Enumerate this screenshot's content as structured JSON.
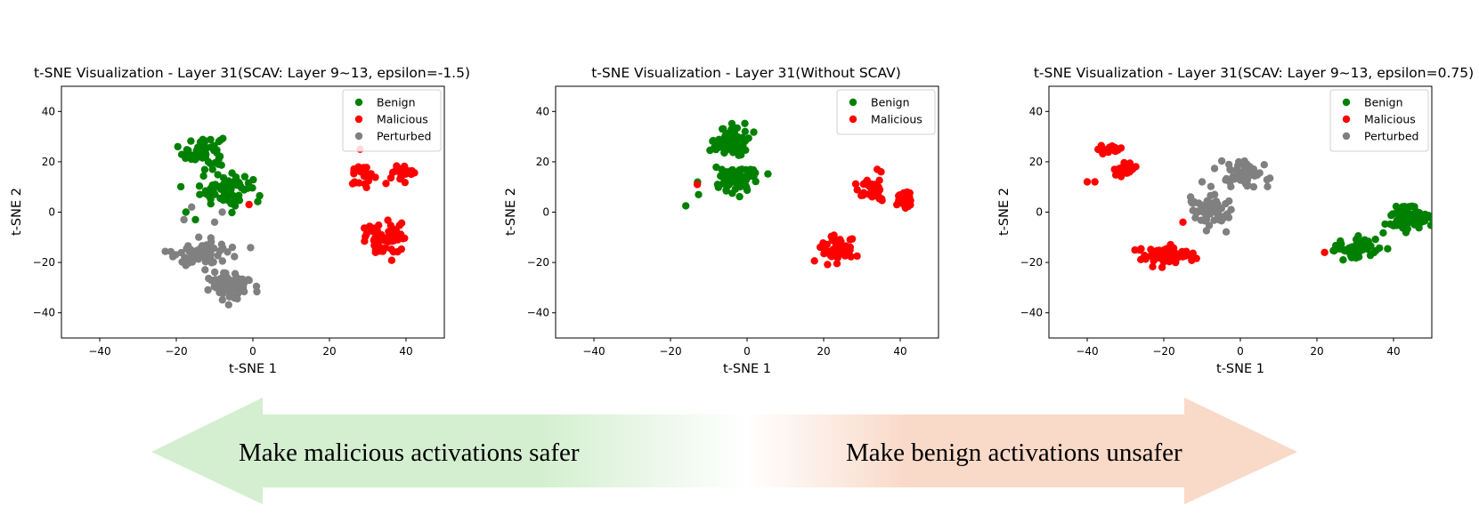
{
  "chart_data": [
    {
      "type": "scatter",
      "title": "t-SNE Visualization - Layer 31(SCAV: Layer 9~13, epsilon=-1.5)",
      "xlabel": "t-SNE 1",
      "ylabel": "t-SNE 2",
      "xlim": [
        -50,
        50
      ],
      "ylim": [
        -50,
        50
      ],
      "xticks": [
        -40,
        -20,
        0,
        20,
        40
      ],
      "yticks": [
        -40,
        -20,
        0,
        20,
        40
      ],
      "legend_position": "top-right",
      "series": [
        {
          "name": "Benign",
          "color": "#008000",
          "clusters": [
            {
              "center": [
                -13,
                24
              ],
              "spread": [
                3.5,
                4.5
              ],
              "count": 70
            },
            {
              "center": [
                -7,
                9
              ],
              "spread": [
                4.5,
                4
              ],
              "count": 70
            }
          ],
          "points": [
            [
              -17.5,
              0
            ],
            [
              -15,
              -3
            ]
          ]
        },
        {
          "name": "Malicious",
          "color": "#ff0000",
          "clusters": [
            {
              "center": [
                29,
                14
              ],
              "spread": [
                2,
                2.8
              ],
              "count": 25
            },
            {
              "center": [
                39,
                15
              ],
              "spread": [
                2.2,
                2.5
              ],
              "count": 25
            },
            {
              "center": [
                34,
                -11
              ],
              "spread": [
                3.5,
                4
              ],
              "count": 65
            }
          ],
          "points": [
            [
              -1,
              3
            ],
            [
              28,
              25
            ]
          ]
        },
        {
          "name": "Perturbed",
          "color": "#808080",
          "clusters": [
            {
              "center": [
                -13,
                -16
              ],
              "spread": [
                4.5,
                3
              ],
              "count": 75
            },
            {
              "center": [
                -6,
                -29
              ],
              "spread": [
                4,
                4
              ],
              "count": 70
            }
          ],
          "points": [
            [
              -16,
              2
            ],
            [
              -18,
              -3
            ],
            [
              -10,
              -4
            ],
            [
              -8,
              0
            ]
          ]
        }
      ]
    },
    {
      "type": "scatter",
      "title": "t-SNE Visualization - Layer 31(Without SCAV)",
      "xlabel": "t-SNE 1",
      "ylabel": "t-SNE 2",
      "xlim": [
        -50,
        50
      ],
      "ylim": [
        -50,
        50
      ],
      "xticks": [
        -40,
        -20,
        0,
        20,
        40
      ],
      "yticks": [
        -40,
        -20,
        0,
        20,
        40
      ],
      "legend_position": "top-right",
      "series": [
        {
          "name": "Benign",
          "color": "#008000",
          "clusters": [
            {
              "center": [
                -4,
                28
              ],
              "spread": [
                3,
                4.5
              ],
              "count": 75
            },
            {
              "center": [
                -3,
                13
              ],
              "spread": [
                4,
                3.5
              ],
              "count": 75
            }
          ],
          "points": [
            [
              -16,
              2.5
            ]
          ]
        },
        {
          "name": "Malicious",
          "color": "#ff0000",
          "clusters": [
            {
              "center": [
                23,
                -15
              ],
              "spread": [
                3,
                3.5
              ],
              "count": 55
            },
            {
              "center": [
                33,
                9
              ],
              "spread": [
                2.8,
                2.8
              ],
              "count": 40
            },
            {
              "center": [
                41,
                5
              ],
              "spread": [
                1.5,
                2
              ],
              "count": 22
            }
          ],
          "points": [
            [
              -13,
              11
            ],
            [
              34,
              17
            ],
            [
              35,
              16
            ]
          ]
        }
      ]
    },
    {
      "type": "scatter",
      "title": "t-SNE Visualization - Layer 31(SCAV: Layer 9~13, epsilon=0.75)",
      "xlabel": "t-SNE 1",
      "ylabel": "t-SNE 2",
      "xlim": [
        -50,
        50
      ],
      "ylim": [
        -50,
        50
      ],
      "xticks": [
        -40,
        -20,
        0,
        20,
        40
      ],
      "yticks": [
        -40,
        -20,
        0,
        20,
        40
      ],
      "legend_position": "top-right",
      "series": [
        {
          "name": "Benign",
          "color": "#008000",
          "clusters": [
            {
              "center": [
                31,
                -14
              ],
              "spread": [
                4.5,
                3
              ],
              "count": 65
            },
            {
              "center": [
                44,
                -3
              ],
              "spread": [
                3.5,
                4
              ],
              "count": 65
            }
          ],
          "points": []
        },
        {
          "name": "Malicious",
          "color": "#ff0000",
          "clusters": [
            {
              "center": [
                -30,
                17
              ],
              "spread": [
                2.5,
                2
              ],
              "count": 25
            },
            {
              "center": [
                -34,
                25
              ],
              "spread": [
                2.5,
                1.2
              ],
              "count": 22
            },
            {
              "center": [
                -19,
                -17
              ],
              "spread": [
                5,
                2.5
              ],
              "count": 70
            }
          ],
          "points": [
            [
              -40,
              12
            ],
            [
              -38,
              12
            ],
            [
              -15,
              -4
            ],
            [
              22,
              -16
            ]
          ]
        },
        {
          "name": "Perturbed",
          "color": "#808080",
          "clusters": [
            {
              "center": [
                1,
                15
              ],
              "spread": [
                4,
                3.5
              ],
              "count": 70
            },
            {
              "center": [
                -8,
                1
              ],
              "spread": [
                3.5,
                4.5
              ],
              "count": 70
            }
          ],
          "points": [
            [
              -13,
              6
            ],
            [
              -10,
              12
            ]
          ]
        }
      ]
    }
  ],
  "arrow": {
    "left_text": "Make malicious activations safer",
    "right_text": "Make benign activations unsafer",
    "left_color": "#d4efd0",
    "right_color": "#f9d9c8"
  }
}
